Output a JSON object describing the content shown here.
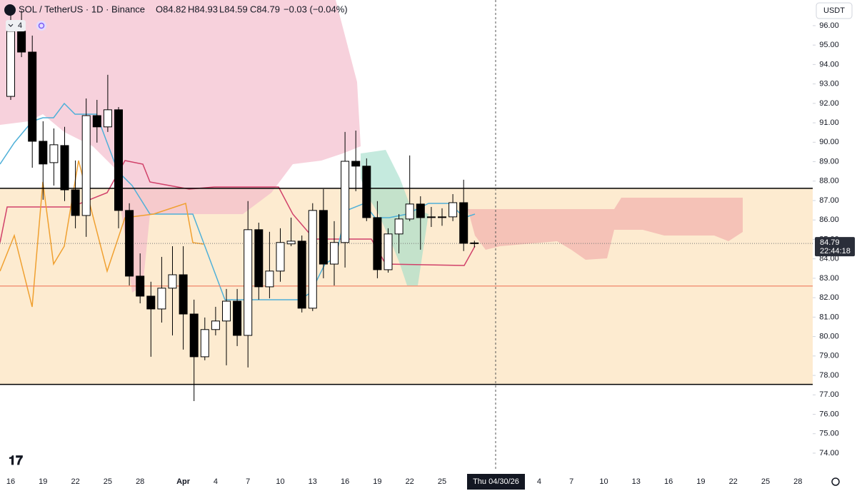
{
  "chart_data": {
    "type": "candlestick",
    "title": "SOL / TetherUS · 1D · Binance",
    "header_stats": [
      "O84.82",
      "H84.93",
      "L84.59",
      "C84.79",
      "−0.03 (−0.04%)"
    ],
    "indicator_count": "4",
    "currency": "USDT",
    "open": [
      92.36,
      95.71,
      94.64,
      90.05,
      88.95,
      89.83,
      87.55,
      86.23,
      91.37,
      90.79,
      91.67,
      86.49,
      83.11,
      82.08,
      81.42,
      82.49,
      83.18,
      81.16,
      78.96,
      80.36,
      80.8,
      81.82,
      80.06,
      85.5,
      82.56,
      83.37,
      84.77,
      84.91,
      81.46,
      86.49,
      83.73,
      84.84,
      89.02,
      88.77,
      86.12,
      83.44,
      85.28,
      86.05,
      86.82,
      86.16,
      86.16,
      86.16,
      86.89,
      84.82
    ],
    "high": [
      96.59,
      96.77,
      95.49,
      91.08,
      90.71,
      90.79,
      89.06,
      92.25,
      92.18,
      93.47,
      91.81,
      86.86,
      84.28,
      82.82,
      84.1,
      84.65,
      84.65,
      81.9,
      80.98,
      81.53,
      82.45,
      82.45,
      86.97,
      85.86,
      85.39,
      85.57,
      86.12,
      85.2,
      86.86,
      87.59,
      85.94,
      90.53,
      90.6,
      89.17,
      86.97,
      85.57,
      86.3,
      89.32,
      87.22,
      86.67,
      86.6,
      87.33,
      88.07,
      84.93
    ],
    "low": [
      92.18,
      94.38,
      88.69,
      87.04,
      87.77,
      86.97,
      85.57,
      85.13,
      89.98,
      90.53,
      85.57,
      82.63,
      81.71,
      78.96,
      80.72,
      80.06,
      79.33,
      76.68,
      78.78,
      80.06,
      78.52,
      79.51,
      78.41,
      81.9,
      81.97,
      82.82,
      84.65,
      81.24,
      81.31,
      83.0,
      82.63,
      83.55,
      87.48,
      85.94,
      83.0,
      83.29,
      84.28,
      85.94,
      84.47,
      85.64,
      85.7,
      85.94,
      84.4,
      84.59
    ],
    "close": [
      95.71,
      94.64,
      90.05,
      88.88,
      89.87,
      87.55,
      86.23,
      91.37,
      90.79,
      91.67,
      86.49,
      83.11,
      82.08,
      81.42,
      82.49,
      83.18,
      81.16,
      78.96,
      80.36,
      80.8,
      81.82,
      80.06,
      85.5,
      82.56,
      83.37,
      84.84,
      84.91,
      81.46,
      86.49,
      83.73,
      84.84,
      89.02,
      88.77,
      86.12,
      83.44,
      85.28,
      86.05,
      86.82,
      86.12,
      86.16,
      86.16,
      86.89,
      84.8,
      84.79
    ],
    "up_color": "#ffffff",
    "down_color": "#000000",
    "ylim": [
      73.08,
      97.32
    ],
    "yticks": [
      {
        "value": 96,
        "label": "96.00"
      },
      {
        "value": 95,
        "label": "95.00"
      },
      {
        "value": 94,
        "label": "94.00"
      },
      {
        "value": 93,
        "label": "93.00"
      },
      {
        "value": 92,
        "label": "92.00"
      },
      {
        "value": 91,
        "label": "91.00"
      },
      {
        "value": 90,
        "label": "90.00"
      },
      {
        "value": 89,
        "label": "89.00"
      },
      {
        "value": 88,
        "label": "88.00"
      },
      {
        "value": 87,
        "label": "87.00"
      },
      {
        "value": 86,
        "label": "86.00"
      },
      {
        "value": 85,
        "label": "85.00"
      },
      {
        "value": 84,
        "label": "84.00"
      },
      {
        "value": 83,
        "label": "83.00"
      },
      {
        "value": 82,
        "label": "82.00"
      },
      {
        "value": 81,
        "label": "81.00"
      },
      {
        "value": 80,
        "label": "80.00"
      },
      {
        "value": 79,
        "label": "79.00"
      },
      {
        "value": 78,
        "label": "78.00"
      },
      {
        "value": 77,
        "label": "77.00"
      },
      {
        "value": 76,
        "label": "76.00"
      },
      {
        "value": 75,
        "label": "75.00"
      },
      {
        "value": 74,
        "label": "74.00"
      }
    ],
    "xticks": [
      "16",
      "19",
      "22",
      "25",
      "28",
      "Apr",
      "4",
      "7",
      "10",
      "13",
      "16",
      "19",
      "22",
      "25",
      "4",
      "7",
      "10",
      "13",
      "16",
      "19",
      "22",
      "25",
      "28"
    ],
    "crosshair_label": "Thu 04/30/26",
    "zone": {
      "low": 77.54,
      "high": 87.63,
      "color": "#fdebd0"
    },
    "levels": [
      {
        "value": 87.63,
        "color": "#000000"
      },
      {
        "value": 77.54,
        "color": "#000000"
      },
      {
        "value": 82.6,
        "color": "#f07a5e"
      }
    ],
    "price_tag": {
      "value": 84.79,
      "countdown": "22:44:18"
    }
  }
}
